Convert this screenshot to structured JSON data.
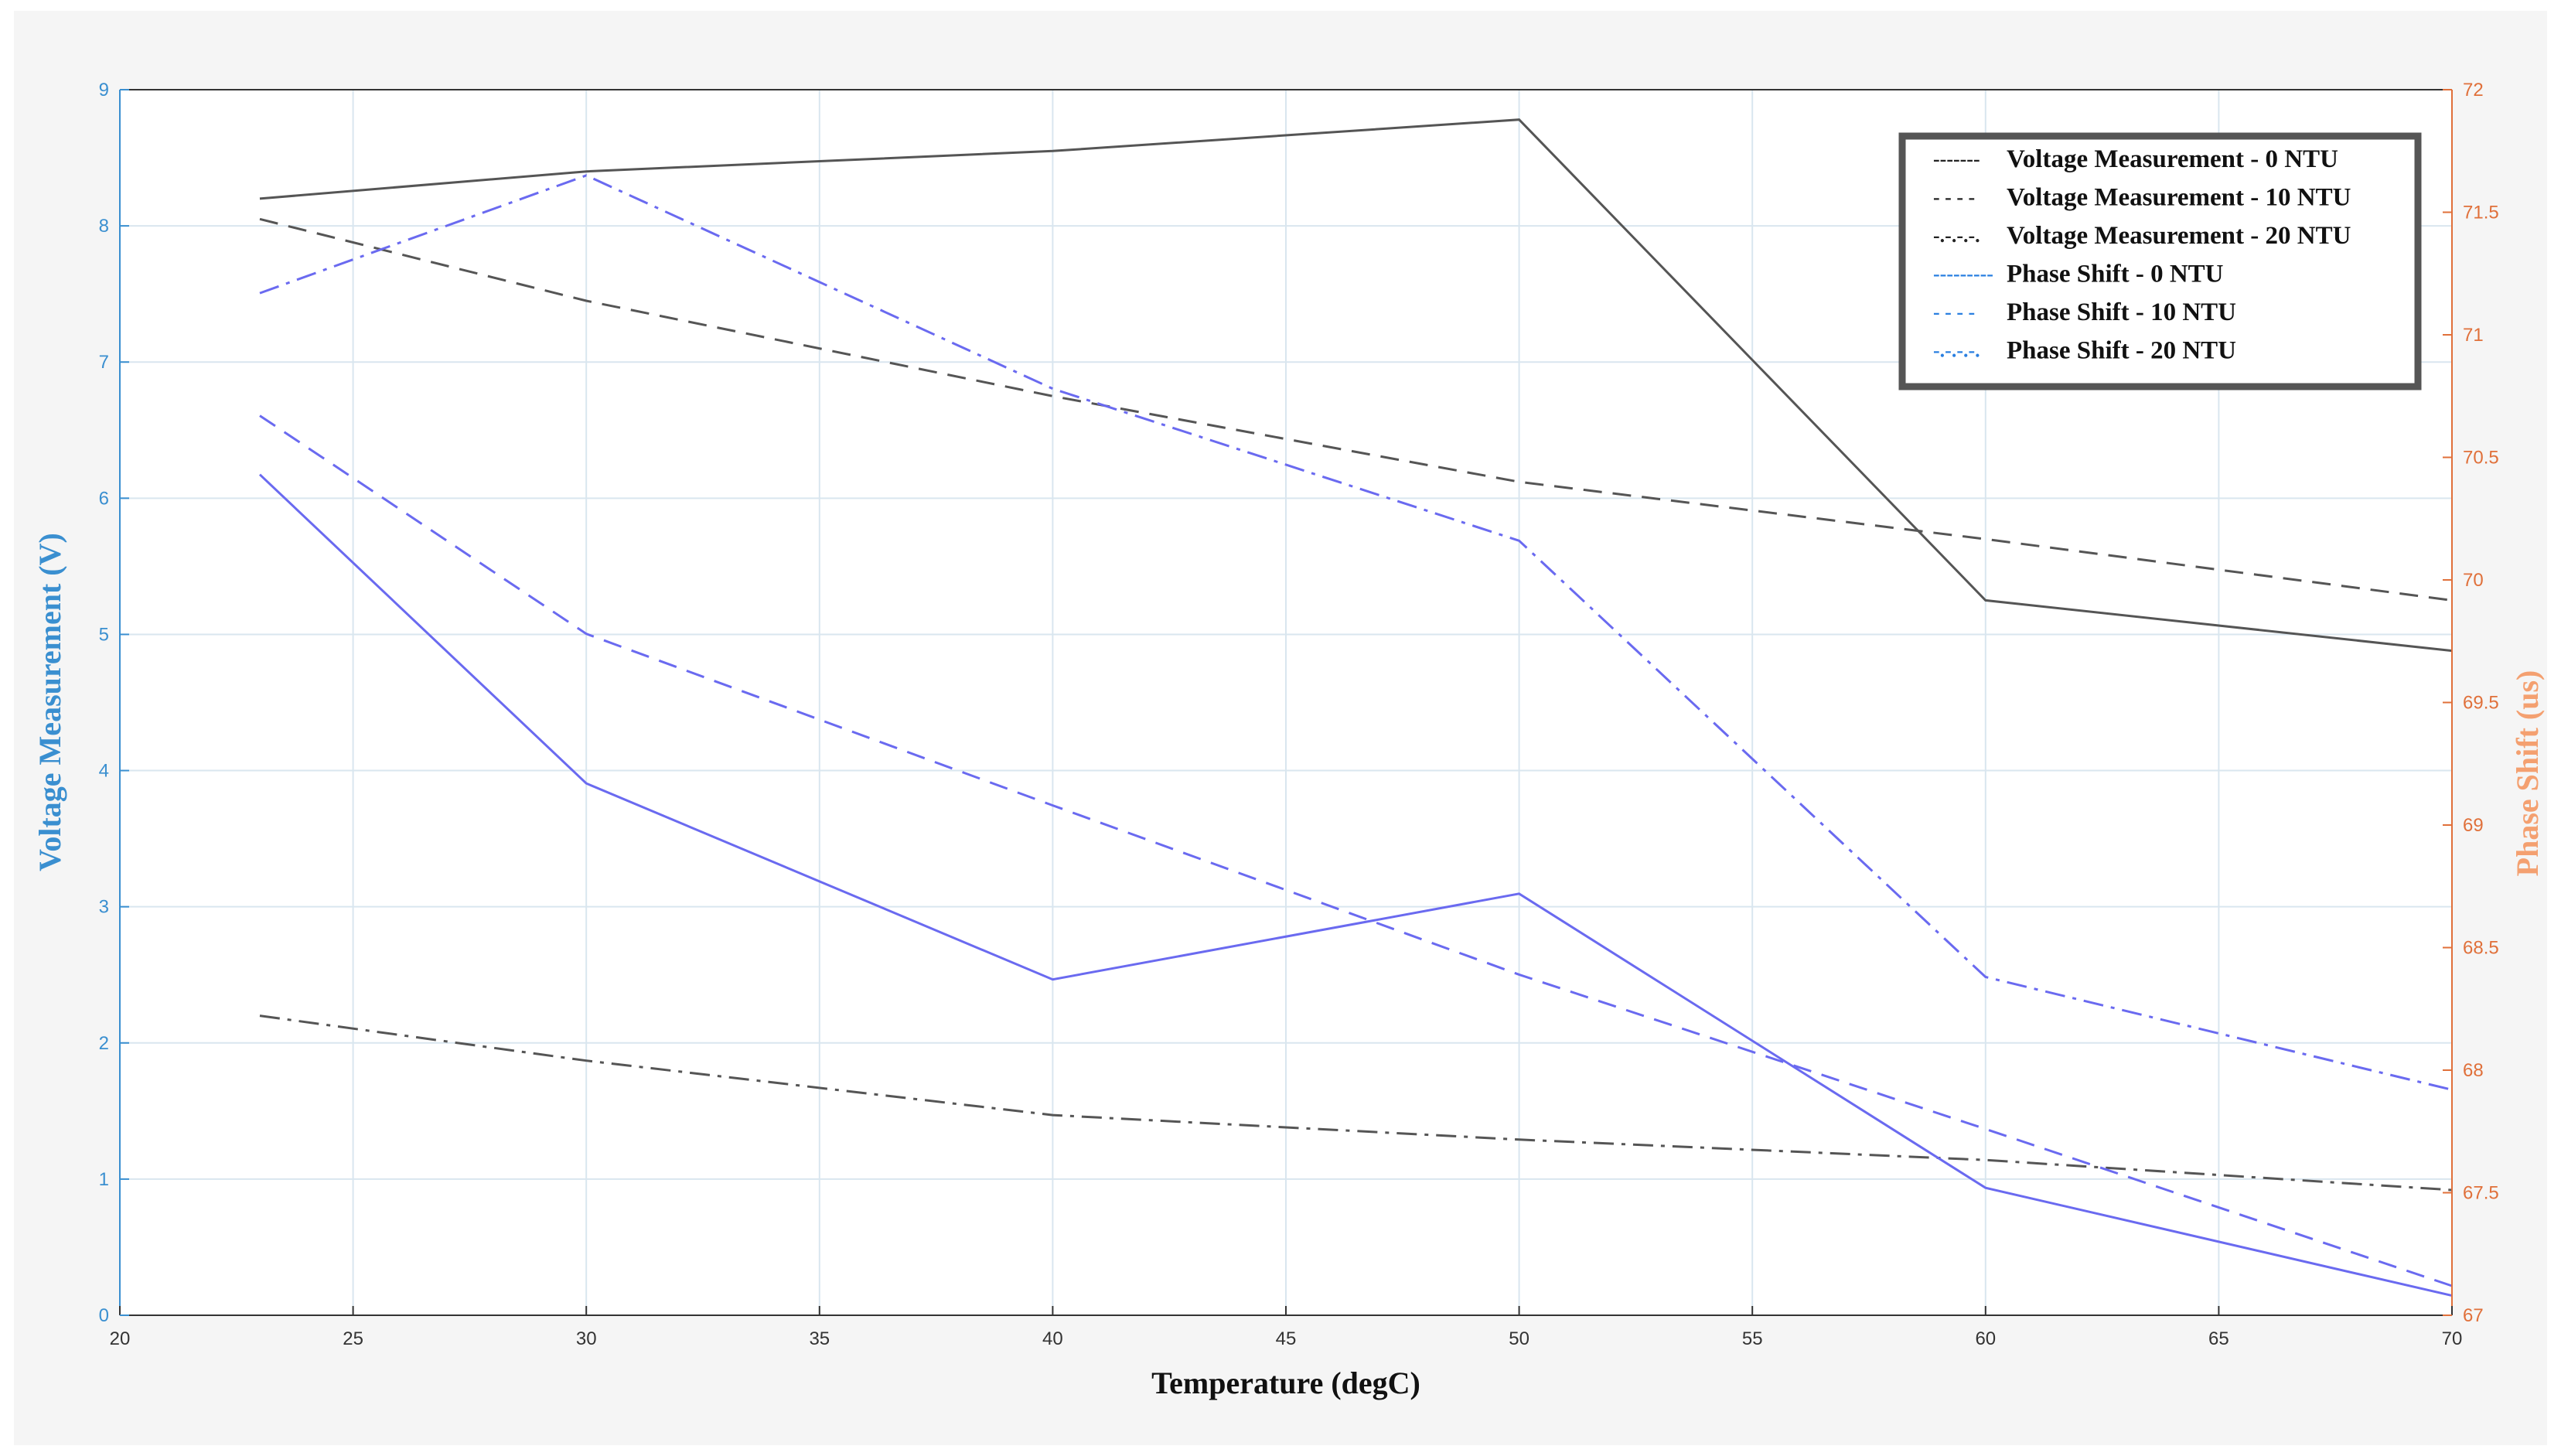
{
  "chart_data": {
    "type": "line",
    "title": "",
    "xlabel": "Temperature (degC)",
    "ylabel_left": "Voltage Measurement (V)",
    "ylabel_right": "Phase Shift (us)",
    "xlim": [
      20,
      70
    ],
    "ylim_left": [
      0,
      9
    ],
    "ylim_right": [
      67,
      72
    ],
    "xticks": [
      "20",
      "25",
      "30",
      "35",
      "40",
      "45",
      "50",
      "55",
      "60",
      "65",
      "70"
    ],
    "yticks_left": [
      "0",
      "1",
      "2",
      "3",
      "4",
      "5",
      "6",
      "7",
      "8",
      "9"
    ],
    "yticks_right": [
      "67",
      "67.5",
      "68",
      "68.5",
      "69",
      "69.5",
      "70",
      "70.5",
      "71",
      "71.5",
      "72"
    ],
    "grid": true,
    "legend_position": "top-right",
    "x": [
      23,
      30,
      40,
      50,
      60,
      70
    ],
    "series": [
      {
        "name": "Voltage Measurement  - 0 NTU",
        "axis": "left",
        "color": "#555555",
        "style": "solid",
        "legend_sample": "-------",
        "values": [
          8.2,
          8.4,
          8.55,
          8.78,
          5.25,
          4.88
        ]
      },
      {
        "name": "Voltage Measurement - 10 NTU",
        "axis": "left",
        "color": "#555555",
        "style": "dashed",
        "legend_sample": "- - - -",
        "values": [
          8.05,
          7.45,
          6.75,
          6.12,
          5.7,
          5.25
        ]
      },
      {
        "name": "Voltage Measurement - 20 NTU",
        "axis": "left",
        "color": "#555555",
        "style": "dashdot",
        "legend_sample": "-.-.-.-.",
        "values": [
          2.2,
          1.87,
          1.47,
          1.29,
          1.14,
          0.92
        ]
      },
      {
        "name": "Phase Shift - 0 NTU",
        "axis": "right",
        "color": "#6a6af0",
        "style": "solid",
        "legend_sample": "---------",
        "values": [
          70.43,
          69.17,
          68.37,
          68.72,
          67.52,
          67.08
        ]
      },
      {
        "name": "Phase Shift - 10 NTU",
        "axis": "right",
        "color": "#6a6af0",
        "style": "dashed",
        "legend_sample": "- - - -",
        "values": [
          70.67,
          69.78,
          69.08,
          68.39,
          67.76,
          67.12
        ]
      },
      {
        "name": "Phase Shift - 20 NTU",
        "axis": "right",
        "color": "#6a6af0",
        "style": "dashdot",
        "legend_sample": "-.-.-.-.",
        "values": [
          71.17,
          71.65,
          70.78,
          70.16,
          68.38,
          67.92
        ]
      }
    ]
  }
}
